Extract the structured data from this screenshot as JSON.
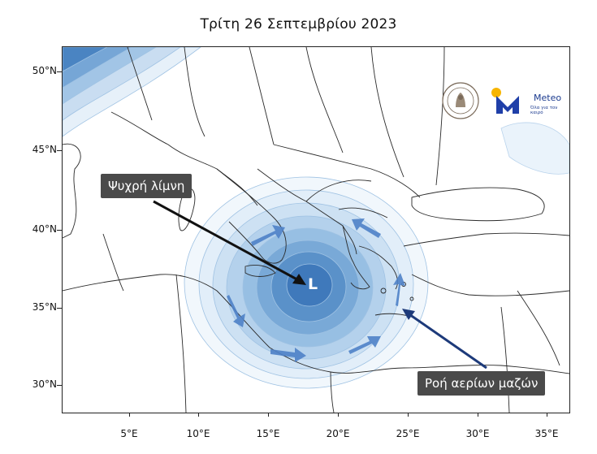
{
  "title": "Τρίτη 26 Σεπτεμβρίου 2023",
  "latitude_labels": [
    "50°N",
    "45°N",
    "40°N",
    "35°N",
    "30°N"
  ],
  "longitude_labels": [
    "5°E",
    "10°E",
    "15°E",
    "20°E",
    "25°E",
    "30°E",
    "35°E"
  ],
  "callouts": {
    "cold_pool": "Ψυχρή λίμνη",
    "air_mass_flow": "Ροή αερίων μαζών"
  },
  "low_center_label": "L",
  "logos": {
    "university_seal_icon": "university-seal-icon",
    "meteo_brand": "Meteo",
    "meteo_tagline": "Όλα για τον καιρό",
    "meteo_colors": {
      "m": "#1f3fa8",
      "dot": "#f7b500"
    }
  },
  "colors": {
    "contour_fill_light": "#eaf3fb",
    "contour_fill_dark": "#2e6cb0",
    "arrow": "#4f82c8",
    "callout_bg": "#4a4a4a"
  }
}
